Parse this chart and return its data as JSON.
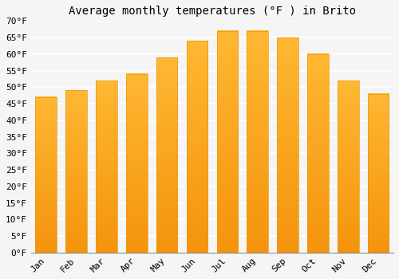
{
  "title": "Average monthly temperatures (°F ) in Brito",
  "months": [
    "Jan",
    "Feb",
    "Mar",
    "Apr",
    "May",
    "Jun",
    "Jul",
    "Aug",
    "Sep",
    "Oct",
    "Nov",
    "Dec"
  ],
  "values": [
    47,
    49,
    52,
    54,
    59,
    64,
    67,
    67,
    65,
    60,
    52,
    48
  ],
  "bar_color_light": "#FFB733",
  "bar_color_dark": "#F59000",
  "bar_edge_color": "#E8960A",
  "ylim": [
    0,
    70
  ],
  "yticks": [
    0,
    5,
    10,
    15,
    20,
    25,
    30,
    35,
    40,
    45,
    50,
    55,
    60,
    65,
    70
  ],
  "ytick_labels": [
    "0°F",
    "5°F",
    "10°F",
    "15°F",
    "20°F",
    "25°F",
    "30°F",
    "35°F",
    "40°F",
    "45°F",
    "50°F",
    "55°F",
    "60°F",
    "65°F",
    "70°F"
  ],
  "background_color": "#f5f5f5",
  "plot_bg_color": "#f5f5f5",
  "grid_color": "#ffffff",
  "title_fontsize": 10,
  "tick_fontsize": 8,
  "font_family": "monospace",
  "bar_width": 0.7
}
